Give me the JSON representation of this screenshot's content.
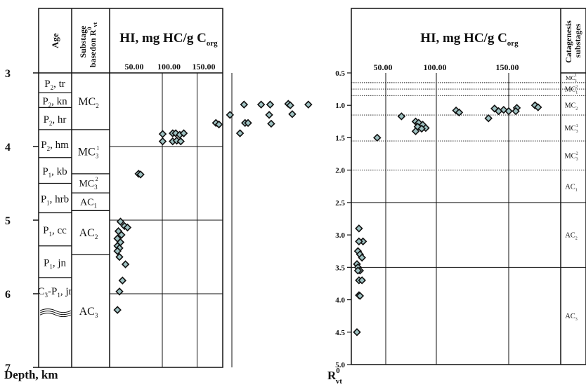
{
  "chart_data": [
    {
      "type": "scatter",
      "panel": "left",
      "title_main": "HI, mg HC/g C",
      "title_sub": "org",
      "xlabel": "",
      "ylabel_main": "Depth, km",
      "col_age_header": "Age",
      "col_substage_header_line1": "Substage",
      "col_substage_header_line2": "basedon R",
      "col_substage_header_sup": "0",
      "col_substage_header_sub": "vt",
      "x_ticks": [
        "50.00",
        "100.00",
        "150.00"
      ],
      "x_tick_values": [
        50,
        100,
        150
      ],
      "y_ticks": [
        "3",
        "4",
        "5",
        "6",
        "7"
      ],
      "y_tick_values": [
        3,
        4,
        5,
        6,
        7
      ],
      "xlim": [
        0,
        200
      ],
      "ylim": [
        3,
        7
      ],
      "grid": true,
      "age_units": [
        {
          "base": "P",
          "sub": "2",
          "rest": ", tr",
          "top": 3.0,
          "bottom": 3.27
        },
        {
          "base": "P",
          "sub": "2",
          "rest": ", kn",
          "top": 3.27,
          "bottom": 3.47
        },
        {
          "base": "P",
          "sub": "2",
          "rest": ", hr",
          "top": 3.47,
          "bottom": 3.77
        },
        {
          "base": "P",
          "sub": "2",
          "rest": ", hm",
          "top": 3.77,
          "bottom": 4.15
        },
        {
          "base": "P",
          "sub": "1",
          "rest": ", kb",
          "top": 4.15,
          "bottom": 4.5
        },
        {
          "base": "P",
          "sub": "1",
          "rest": ", hrb",
          "top": 4.5,
          "bottom": 4.9
        },
        {
          "base": "P",
          "sub": "1",
          "rest": ", cc",
          "top": 4.9,
          "bottom": 5.35
        },
        {
          "base": "P",
          "sub": "1",
          "rest": ", jn",
          "top": 5.35,
          "bottom": 5.78
        },
        {
          "base": "C",
          "sub": "3",
          "rest": "-P",
          "sub2": "1",
          "rest2": ", jr",
          "top": 5.78,
          "bottom": 7.0
        }
      ],
      "substages": [
        {
          "base": "MC",
          "sub": "2",
          "sup": "",
          "top": 3.0,
          "bottom": 3.77
        },
        {
          "base": "MC",
          "sub": "3",
          "sup": "1",
          "top": 3.77,
          "bottom": 4.37
        },
        {
          "base": "MC",
          "sub": "3",
          "sup": "2",
          "top": 4.37,
          "bottom": 4.63
        },
        {
          "base": "AC",
          "sub": "1",
          "sup": "",
          "top": 4.63,
          "bottom": 4.87
        },
        {
          "base": "AC",
          "sub": "2",
          "sup": "",
          "top": 4.87,
          "bottom": 5.47
        },
        {
          "base": "AC",
          "sub": "3",
          "sup": "",
          "top": 5.47,
          "bottom": 7.0
        }
      ],
      "points": [
        {
          "x": 148,
          "y": 3.43
        },
        {
          "x": 157,
          "y": 3.43
        },
        {
          "x": 175,
          "y": 3.42
        },
        {
          "x": 177,
          "y": 3.44
        },
        {
          "x": 195,
          "y": 3.43
        },
        {
          "x": 131,
          "y": 3.43
        },
        {
          "x": 156,
          "y": 3.57
        },
        {
          "x": 179,
          "y": 3.56
        },
        {
          "x": 117,
          "y": 3.57
        },
        {
          "x": 132,
          "y": 3.68
        },
        {
          "x": 135,
          "y": 3.68
        },
        {
          "x": 158,
          "y": 3.69
        },
        {
          "x": 103,
          "y": 3.68
        },
        {
          "x": 106,
          "y": 3.7
        },
        {
          "x": 127,
          "y": 3.82
        },
        {
          "x": 50,
          "y": 3.83
        },
        {
          "x": 60,
          "y": 3.82
        },
        {
          "x": 63,
          "y": 3.82
        },
        {
          "x": 67,
          "y": 3.84
        },
        {
          "x": 71,
          "y": 3.82
        },
        {
          "x": 50,
          "y": 3.93
        },
        {
          "x": 60,
          "y": 3.93
        },
        {
          "x": 64,
          "y": 3.92
        },
        {
          "x": 68,
          "y": 3.93
        },
        {
          "x": 26,
          "y": 4.37
        },
        {
          "x": 28,
          "y": 4.38
        },
        {
          "x": 8,
          "y": 5.02
        },
        {
          "x": 12,
          "y": 5.08
        },
        {
          "x": 15,
          "y": 5.1
        },
        {
          "x": 6,
          "y": 5.15
        },
        {
          "x": 9,
          "y": 5.2
        },
        {
          "x": 5,
          "y": 5.25
        },
        {
          "x": 8,
          "y": 5.3
        },
        {
          "x": 5,
          "y": 5.35
        },
        {
          "x": 7,
          "y": 5.38
        },
        {
          "x": 5,
          "y": 5.42
        },
        {
          "x": 7,
          "y": 5.5
        },
        {
          "x": 13,
          "y": 5.6
        },
        {
          "x": 10,
          "y": 5.82
        },
        {
          "x": 7,
          "y": 5.97
        },
        {
          "x": 5,
          "y": 6.22
        }
      ]
    },
    {
      "type": "scatter",
      "panel": "right",
      "title_main": "HI, mg HC/g C",
      "title_sub": "org",
      "ylabel_main": "R",
      "ylabel_sup": "0",
      "ylabel_sub": "vt",
      "col_stage_header_line1": "Catagenesis",
      "col_stage_header_line2": "substages",
      "x_ticks": [
        "50.00",
        "100.00",
        "150.00"
      ],
      "x_tick_values": [
        50,
        100,
        150
      ],
      "y_ticks": [
        "0.5",
        "1.0",
        "1.5",
        "2.0",
        "2.5",
        "3.0",
        "3.5",
        "4.0",
        "4.5",
        "5.0"
      ],
      "y_tick_values": [
        0.5,
        1.0,
        1.5,
        2.0,
        2.5,
        3.0,
        3.5,
        4.0,
        4.5,
        5.0
      ],
      "xlim": [
        0,
        200
      ],
      "ylim": [
        0.5,
        5.0
      ],
      "grid": true,
      "substage_dividers_dotted": [
        0.65,
        0.75,
        0.85,
        1.15,
        1.55,
        2.0
      ],
      "substage_dividers_solid": [
        2.5,
        3.5
      ],
      "substages": [
        {
          "base": "MC",
          "sub": "1",
          "sup": "1",
          "top": 0.5,
          "bottom": 0.65
        },
        {
          "base": "MC",
          "sub": "1",
          "sup": "2",
          "top": 0.65,
          "bottom": 0.85
        },
        {
          "base": "MC",
          "sub": "2",
          "sup": "",
          "top": 0.85,
          "bottom": 1.15
        },
        {
          "base": "MC",
          "sub": "3",
          "sup": "1",
          "top": 1.15,
          "bottom": 1.55
        },
        {
          "base": "MC",
          "sub": "3",
          "sup": "2",
          "top": 1.55,
          "bottom": 2.0
        },
        {
          "base": "AC",
          "sub": "1",
          "sup": "",
          "top": 2.0,
          "bottom": 2.5
        },
        {
          "base": "AC",
          "sub": "2",
          "sup": "",
          "top": 2.5,
          "bottom": 3.5
        },
        {
          "base": "AC",
          "sub": "3",
          "sup": "",
          "top": 3.5,
          "bottom": 5.0
        }
      ],
      "points": [
        {
          "x": 176,
          "y": 1.0
        },
        {
          "x": 179,
          "y": 1.03
        },
        {
          "x": 158,
          "y": 1.04
        },
        {
          "x": 145,
          "y": 1.07
        },
        {
          "x": 150,
          "y": 1.09
        },
        {
          "x": 157,
          "y": 1.09
        },
        {
          "x": 136,
          "y": 1.05
        },
        {
          "x": 140,
          "y": 1.09
        },
        {
          "x": 98,
          "y": 1.08
        },
        {
          "x": 101,
          "y": 1.11
        },
        {
          "x": 130,
          "y": 1.2
        },
        {
          "x": 44,
          "y": 1.17
        },
        {
          "x": 58,
          "y": 1.25
        },
        {
          "x": 61,
          "y": 1.27
        },
        {
          "x": 65,
          "y": 1.3
        },
        {
          "x": 68,
          "y": 1.35
        },
        {
          "x": 60,
          "y": 1.33
        },
        {
          "x": 64,
          "y": 1.36
        },
        {
          "x": 58,
          "y": 1.4
        },
        {
          "x": 20,
          "y": 1.5
        },
        {
          "x": 2,
          "y": 2.9
        },
        {
          "x": 6,
          "y": 3.1
        },
        {
          "x": 2,
          "y": 3.1
        },
        {
          "x": 1,
          "y": 3.25
        },
        {
          "x": 3,
          "y": 3.3
        },
        {
          "x": 5,
          "y": 3.35
        },
        {
          "x": 0,
          "y": 3.45
        },
        {
          "x": 1,
          "y": 3.5
        },
        {
          "x": 3,
          "y": 3.55
        },
        {
          "x": 1,
          "y": 3.55
        },
        {
          "x": 2,
          "y": 3.7
        },
        {
          "x": 5,
          "y": 3.7
        },
        {
          "x": 2,
          "y": 3.93
        },
        {
          "x": 3,
          "y": 3.94
        },
        {
          "x": 0,
          "y": 4.5
        }
      ]
    }
  ]
}
